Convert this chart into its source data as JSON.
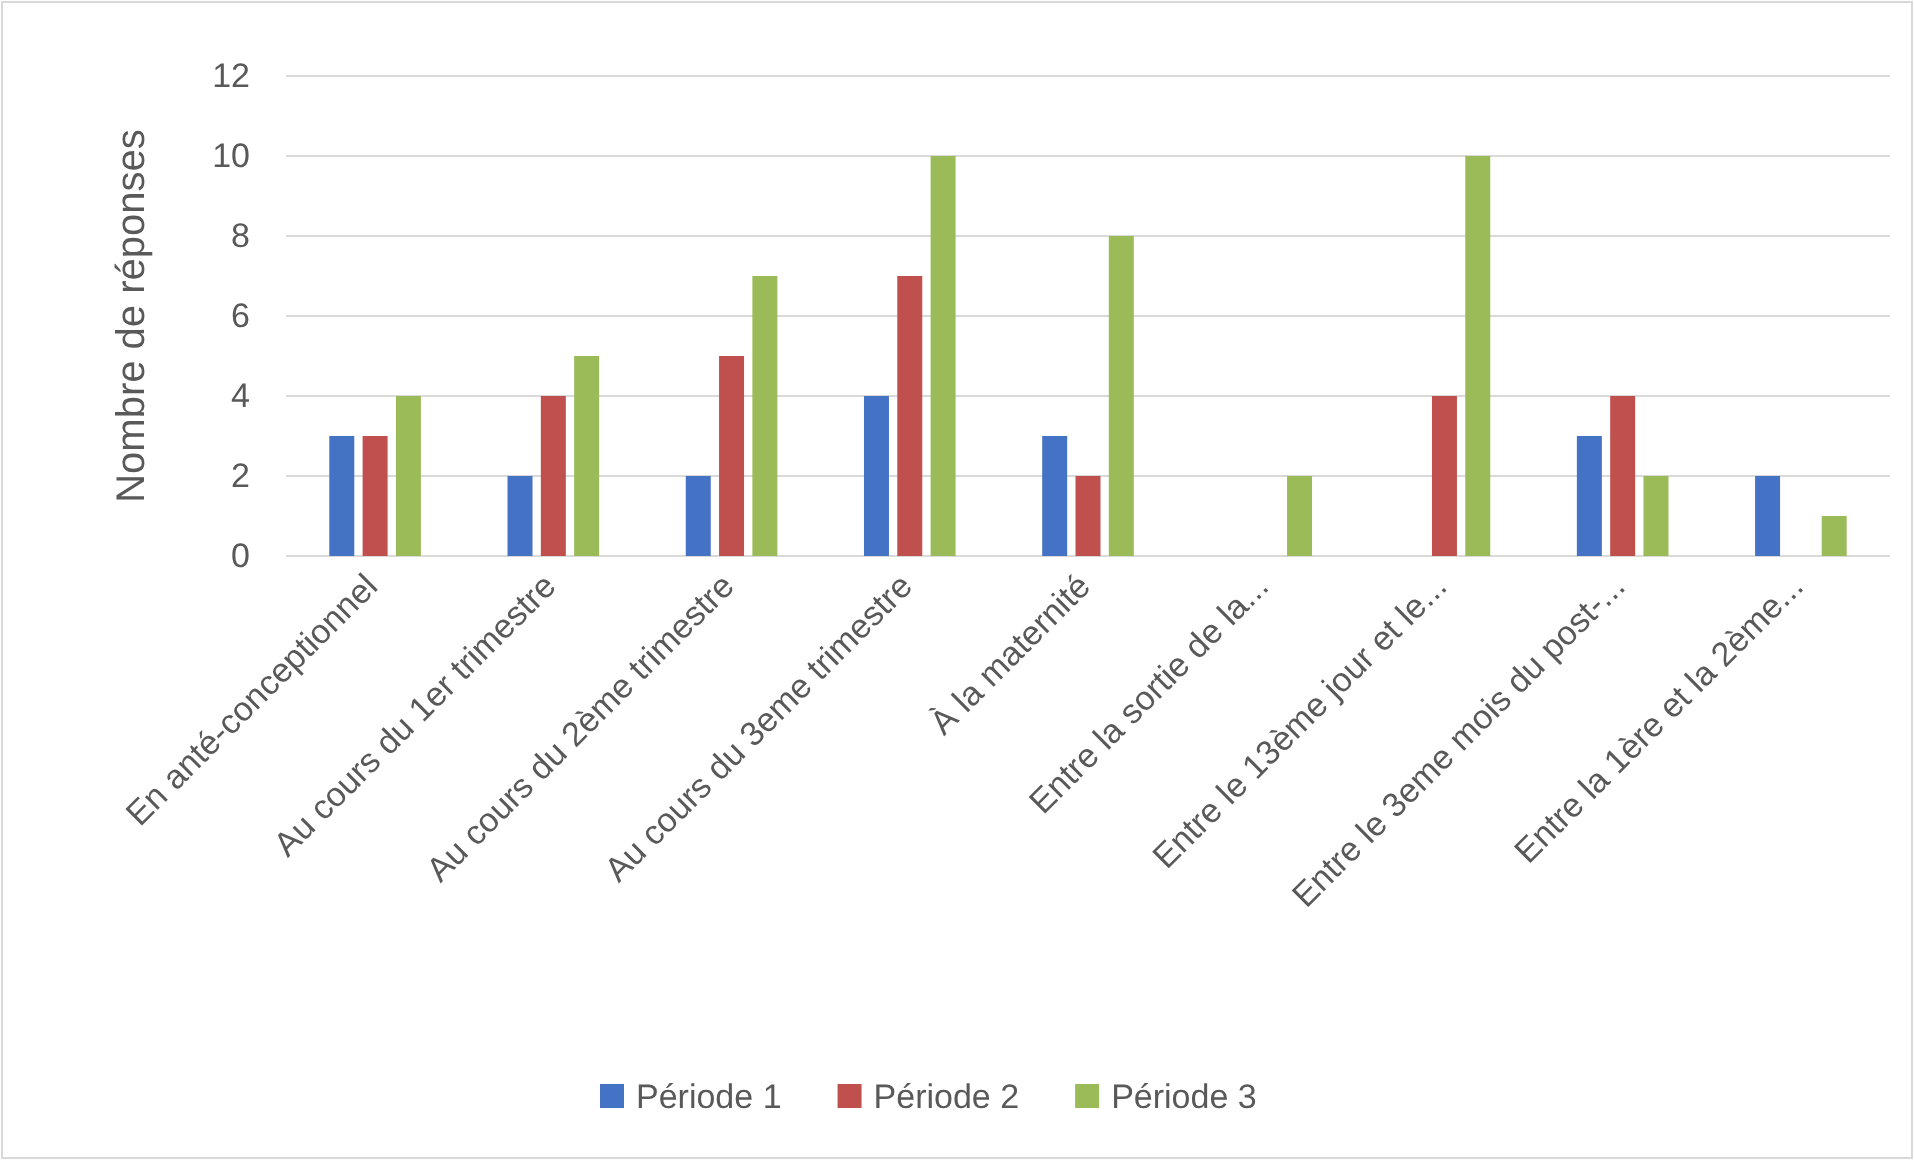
{
  "chart_data": {
    "type": "bar",
    "ylabel": "Nombre de réponses",
    "categories": [
      "En anté-conceptionnel",
      "Au cours du 1er trimestre",
      "Au cours du 2ème trimestre",
      "Au cours du 3eme trimestre",
      "À la maternité",
      "Entre la sortie de la...",
      "Entre le 13ème jour et le...",
      "Entre le 3eme mois du post-...",
      "Entre la 1ère et la 2ème..."
    ],
    "series": [
      {
        "name": "Période 1",
        "color": "#4472c4",
        "values": [
          3,
          2,
          2,
          4,
          3,
          0,
          0,
          3,
          2
        ]
      },
      {
        "name": "Période 2",
        "color": "#c0504d",
        "values": [
          3,
          4,
          5,
          7,
          2,
          0,
          4,
          4,
          0
        ]
      },
      {
        "name": "Période 3",
        "color": "#9bbb59",
        "values": [
          4,
          5,
          7,
          10,
          8,
          2,
          10,
          2,
          1
        ]
      }
    ],
    "ylim": [
      0,
      12
    ],
    "yticks": [
      0,
      2,
      4,
      6,
      8,
      10,
      12
    ],
    "grid": "y",
    "legend": "bottom"
  }
}
